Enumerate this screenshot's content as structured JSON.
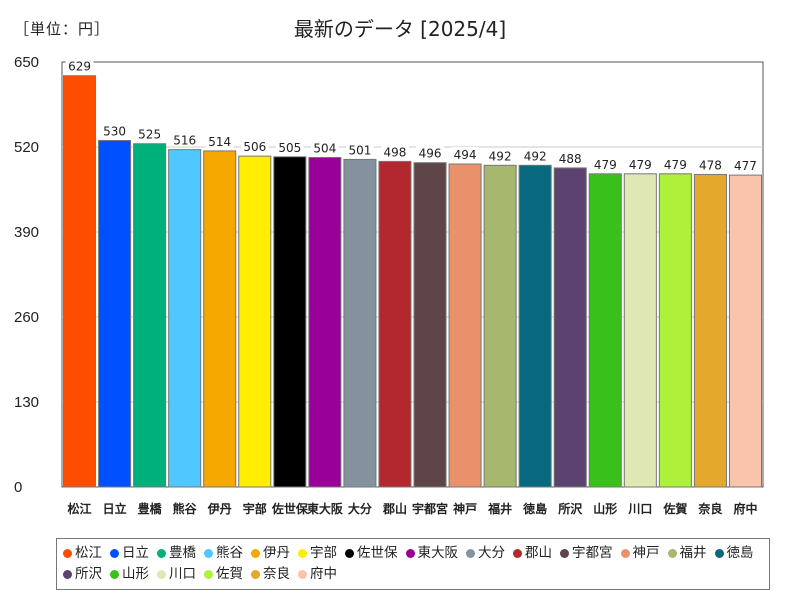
{
  "header": {
    "unit": "［単位：円］",
    "title": "最新のデータ [2025/4]"
  },
  "chart_data": {
    "type": "bar",
    "title": "最新のデータ [2025/4]",
    "unit_label": "［単位：円］",
    "categories": [
      "松江",
      "日立",
      "豊橋",
      "熊谷",
      "伊丹",
      "宇部",
      "佐世保",
      "東大阪",
      "大分",
      "郡山",
      "宇都宮",
      "神戸",
      "福井",
      "徳島",
      "所沢",
      "山形",
      "川口",
      "佐賀",
      "奈良",
      "府中"
    ],
    "values": [
      629,
      530,
      525,
      516,
      514,
      506,
      505,
      504,
      501,
      498,
      496,
      494,
      492,
      492,
      488,
      479,
      479,
      479,
      478,
      477
    ],
    "colors": [
      "#ff4d00",
      "#0050ff",
      "#00b07a",
      "#50c8ff",
      "#f5a800",
      "#ffee00",
      "#000000",
      "#990099",
      "#8492a0",
      "#b2282e",
      "#5e4548",
      "#e8916a",
      "#a6b86e",
      "#08687e",
      "#5c426e",
      "#39c01a",
      "#dfe8b4",
      "#aef03a",
      "#e3a82c",
      "#f9c3ac"
    ],
    "yticks": [
      0,
      130,
      260,
      390,
      520,
      650
    ],
    "ylim": [
      0,
      650
    ],
    "grid": true,
    "legend_position": "bottom"
  }
}
